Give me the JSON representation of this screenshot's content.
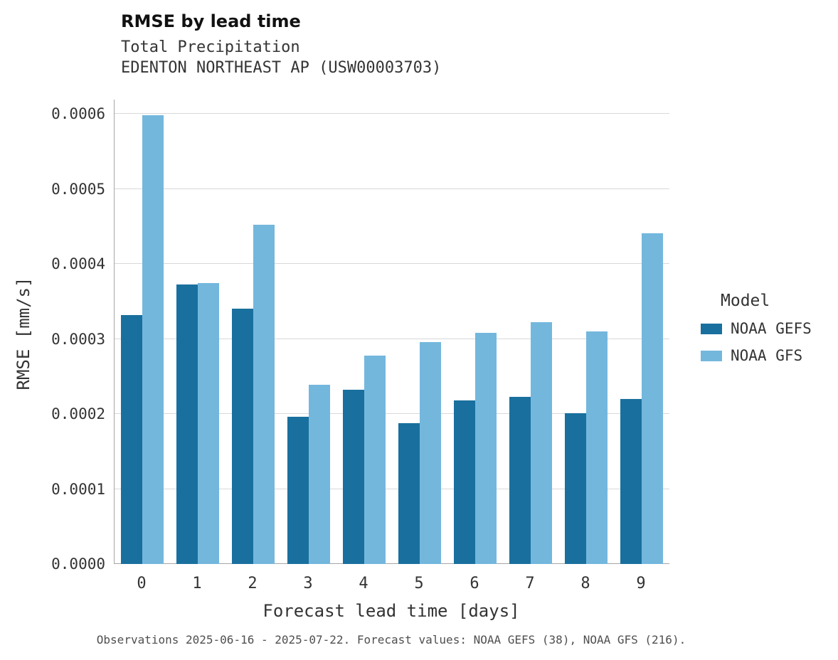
{
  "header": {
    "title": "RMSE by lead time",
    "subtitle1": "Total Precipitation",
    "subtitle2": "EDENTON NORTHEAST AP (USW00003703)"
  },
  "caption": "Observations 2025-06-16 - 2025-07-22. Forecast values: NOAA GEFS (38), NOAA GFS (216).",
  "legend": {
    "title": "Model",
    "entries": [
      {
        "label": "NOAA GEFS",
        "color": "#19709e"
      },
      {
        "label": "NOAA GFS",
        "color": "#74b7dd"
      }
    ]
  },
  "chart_data": {
    "type": "bar",
    "title": "RMSE by lead time",
    "subtitle": "Total Precipitation — EDENTON NORTHEAST AP (USW00003703)",
    "xlabel": "Forecast lead time [days]",
    "ylabel": "RMSE [mm/s]",
    "categories": [
      "0",
      "1",
      "2",
      "3",
      "4",
      "5",
      "6",
      "7",
      "8",
      "9"
    ],
    "series": [
      {
        "name": "NOAA GEFS",
        "color": "#19709e",
        "values": [
          0.000332,
          0.000373,
          0.00034,
          0.000196,
          0.000232,
          0.000188,
          0.000218,
          0.000223,
          0.000201,
          0.00022
        ]
      },
      {
        "name": "NOAA GFS",
        "color": "#74b7dd",
        "values": [
          0.000598,
          0.000374,
          0.000452,
          0.000239,
          0.000278,
          0.000296,
          0.000308,
          0.000322,
          0.00031,
          0.000441
        ]
      }
    ],
    "ylim": [
      0,
      0.0006
    ],
    "yticks": [
      "0.0000",
      "0.0001",
      "0.0002",
      "0.0003",
      "0.0004",
      "0.0005",
      "0.0006"
    ],
    "grid": true,
    "legend_position": "right"
  }
}
